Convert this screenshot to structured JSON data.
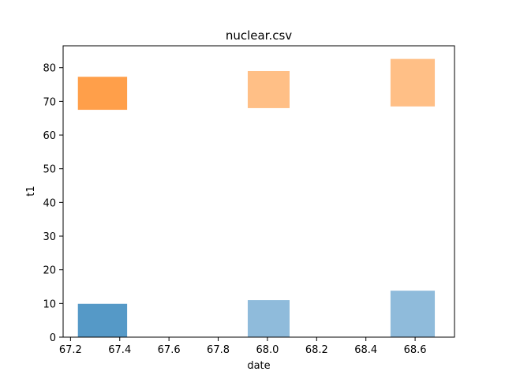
{
  "chart_data": {
    "type": "bar",
    "title": "nuclear.csv",
    "xlabel": "date",
    "ylabel": "t1",
    "xlim": [
      67.17,
      68.76
    ],
    "ylim": [
      0,
      86.5
    ],
    "xticks": [
      67.2,
      67.4,
      67.6,
      67.8,
      68.0,
      68.2,
      68.4,
      68.6
    ],
    "yticks": [
      0,
      10,
      20,
      30,
      40,
      50,
      60,
      70,
      80
    ],
    "grid": false,
    "bars": [
      {
        "x0": 67.23,
        "x1": 67.43,
        "y0": 0,
        "y1": 9.9,
        "color": "#5599c7"
      },
      {
        "x0": 67.23,
        "x1": 67.43,
        "y0": 67.5,
        "y1": 77.3,
        "color": "#ff9f4a"
      },
      {
        "x0": 67.92,
        "x1": 68.09,
        "y0": 0,
        "y1": 11.0,
        "color": "#8fbbdb"
      },
      {
        "x0": 67.92,
        "x1": 68.09,
        "y0": 68.0,
        "y1": 79.0,
        "color": "#ffbf86"
      },
      {
        "x0": 68.5,
        "x1": 68.68,
        "y0": 0,
        "y1": 13.8,
        "color": "#8fbbdb"
      },
      {
        "x0": 68.5,
        "x1": 68.68,
        "y0": 68.5,
        "y1": 82.6,
        "color": "#ffbf86"
      }
    ]
  }
}
